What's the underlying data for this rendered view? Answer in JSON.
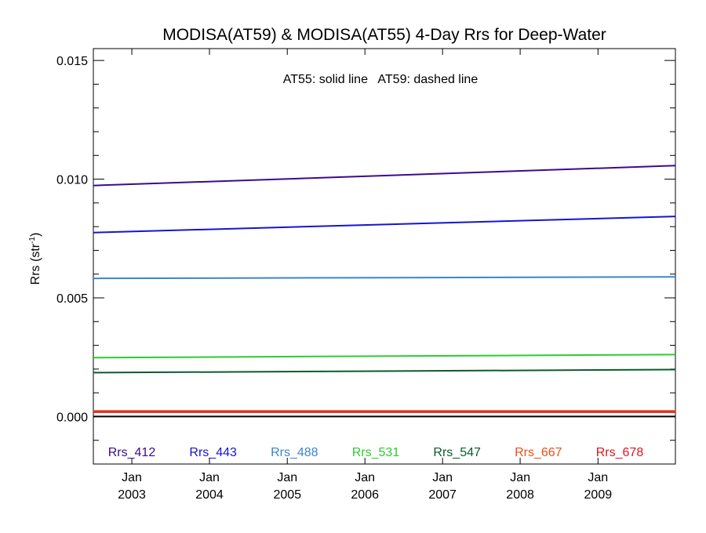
{
  "chart_data": {
    "type": "line",
    "title": "MODISA(AT59) & MODISA(AT55) 4-Day Rrs for Deep-Water",
    "annotation": "AT55: solid line   AT59: dashed line",
    "ylabel": "Rrs (str",
    "ylabel_sup": "-1",
    "ylabel_tail": ")",
    "xlabel": "",
    "xlim": [
      "2002-07-04",
      "2009-12-31"
    ],
    "ylim": [
      -0.002,
      0.0155
    ],
    "yticks": [
      0.0,
      0.005,
      0.01,
      0.015
    ],
    "ytick_labels": [
      "0.000",
      "0.005",
      "0.010",
      "0.015"
    ],
    "xticks": [
      {
        "date": "2003-01-01",
        "month": "Jan",
        "year": "2003"
      },
      {
        "date": "2004-01-01",
        "month": "Jan",
        "year": "2004"
      },
      {
        "date": "2005-01-01",
        "month": "Jan",
        "year": "2005"
      },
      {
        "date": "2006-01-01",
        "month": "Jan",
        "year": "2006"
      },
      {
        "date": "2007-01-01",
        "month": "Jan",
        "year": "2007"
      },
      {
        "date": "2008-01-01",
        "month": "Jan",
        "year": "2008"
      },
      {
        "date": "2009-01-01",
        "month": "Jan",
        "year": "2009"
      }
    ],
    "grid": false,
    "legend_position": "bottom inside plot",
    "zero_line": {
      "value": 0.0,
      "color": "#000000"
    },
    "series": [
      {
        "name": "Rrs_412",
        "color": "#3d0a8c",
        "x": [
          "2002-07-04",
          "2009-12-31"
        ],
        "values": [
          0.00973,
          0.01057
        ]
      },
      {
        "name": "Rrs_443",
        "color": "#1414d6",
        "x": [
          "2002-07-04",
          "2009-12-31"
        ],
        "values": [
          0.00775,
          0.00843
        ]
      },
      {
        "name": "Rrs_488",
        "color": "#3a86cc",
        "x": [
          "2002-07-04",
          "2009-12-31"
        ],
        "values": [
          0.00582,
          0.00588
        ]
      },
      {
        "name": "Rrs_531",
        "color": "#2ecc2e",
        "x": [
          "2002-07-04",
          "2009-12-31"
        ],
        "values": [
          0.00248,
          0.00261
        ]
      },
      {
        "name": "Rrs_547",
        "color": "#0a5c2a",
        "x": [
          "2002-07-04",
          "2009-12-31"
        ],
        "values": [
          0.00185,
          0.00198
        ]
      },
      {
        "name": "Rrs_667",
        "color": "#e8501a",
        "x": [
          "2002-07-04",
          "2009-12-31"
        ],
        "values": [
          0.00024,
          0.00024
        ]
      },
      {
        "name": "Rrs_678",
        "color": "#d8181e",
        "x": [
          "2002-07-04",
          "2009-12-31"
        ],
        "values": [
          0.00019,
          0.00019
        ]
      }
    ]
  }
}
